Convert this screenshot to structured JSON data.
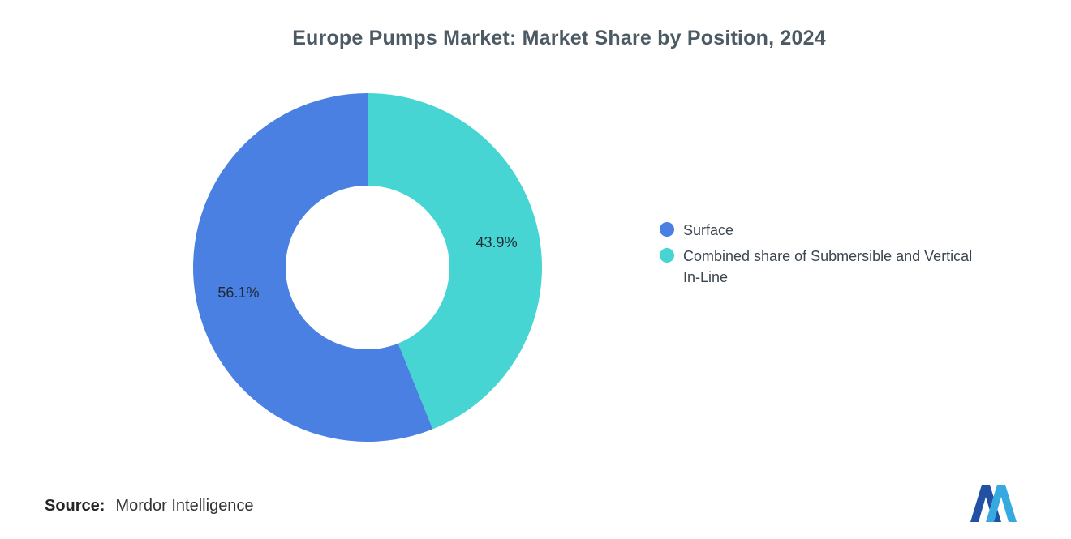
{
  "title": "Europe Pumps Market: Market Share by Position, 2024",
  "source": {
    "label": "Source:",
    "value": "Mordor Intelligence"
  },
  "legend": [
    {
      "label": "Surface",
      "color": "#4a80e1"
    },
    {
      "label": "Combined share of Submersible and Vertical In-Line",
      "color": "#46d5d2"
    }
  ],
  "logo": {
    "name": "mordor-intelligence-logo",
    "color_dark": "#2150a5",
    "color_light": "#36a9e1"
  },
  "chart_data": {
    "type": "pie",
    "donut": true,
    "title": "Europe Pumps Market: Market Share by Position, 2024",
    "categories": [
      "Surface",
      "Combined share of Submersible and Vertical In-Line"
    ],
    "values": [
      56.1,
      43.9
    ],
    "labels": [
      "56.1%",
      "43.9%"
    ],
    "colors": [
      "#4a80e1",
      "#46d5d2"
    ],
    "total": 100,
    "start_angle_deg": 0,
    "direction": "counterclockwise",
    "inner_radius_ratio": 0.47,
    "legend_position": "right",
    "label_color": "#1f2a33"
  }
}
